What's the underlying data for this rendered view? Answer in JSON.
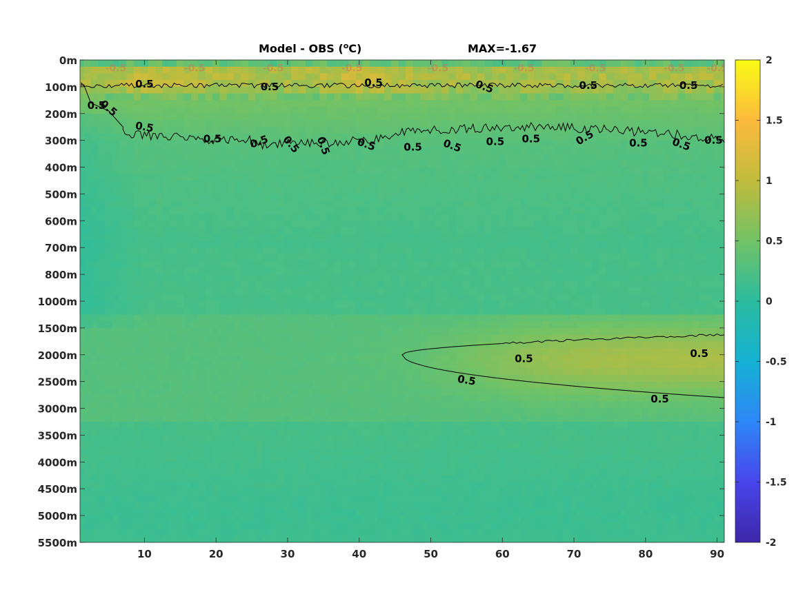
{
  "chart_data": {
    "type": "heatmap",
    "title": "Model - OBS (",
    "title_unit": "C)",
    "title_degree": "o",
    "max_annotation": "MAX=-1.67",
    "x_ticks": [
      10,
      20,
      30,
      40,
      50,
      60,
      70,
      80,
      90
    ],
    "x_range": [
      1,
      91
    ],
    "y_ticks": [
      "0m",
      "100m",
      "200m",
      "300m",
      "400m",
      "500m",
      "600m",
      "700m",
      "800m",
      "1000m",
      "1500m",
      "2000m",
      "2500m",
      "3000m",
      "3500m",
      "4000m",
      "4500m",
      "5000m",
      "5500m"
    ],
    "colorbar": {
      "range": [
        -2,
        2
      ],
      "ticks": [
        "2",
        "1.5",
        "1",
        "0.5",
        "0",
        "-0.5",
        "-1",
        "-1.5",
        "-2"
      ],
      "colormap": "parula",
      "stops": [
        "#3e26a8",
        "#4746eb",
        "#2e87f7",
        "#15b1d4",
        "#2bbc9e",
        "#72c266",
        "#c1bc3c",
        "#fcba3d",
        "#f9fb15"
      ]
    },
    "contour_level": "0.5",
    "contour_label_text": "0.5",
    "contour_negative_label": "-0.5",
    "field_description": "temperature difference model minus observation (degC) vs depth level and column index"
  }
}
